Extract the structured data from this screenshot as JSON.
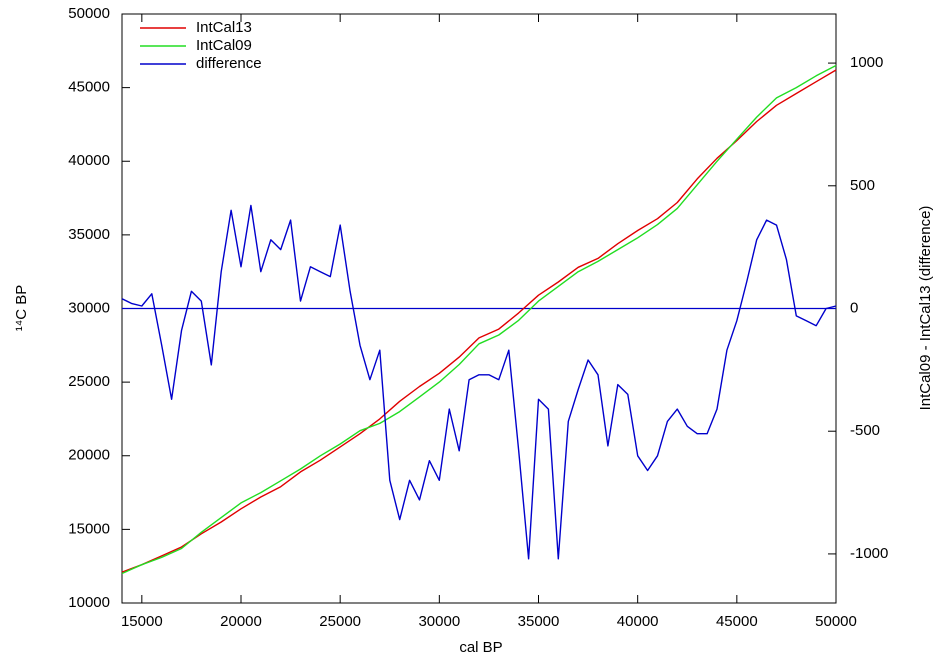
{
  "chart_data": {
    "type": "line",
    "xlabel": "cal BP",
    "ylabel": "¹⁴C BP",
    "y2label": "IntCal09 - IntCal13 (difference)",
    "xlim": [
      14000,
      50000
    ],
    "xticks": [
      15000,
      20000,
      25000,
      30000,
      35000,
      40000,
      45000,
      50000
    ],
    "ylim": [
      10000,
      50000
    ],
    "yticks": [
      10000,
      15000,
      20000,
      25000,
      30000,
      35000,
      40000,
      45000,
      50000
    ],
    "y2lim": [
      -1200,
      1200
    ],
    "y2ticks": [
      -1000,
      -500,
      0,
      500,
      1000
    ],
    "legend": "upper-left",
    "reference_line": {
      "axis": "y2",
      "value": 0,
      "color": "#0000cc"
    },
    "series": [
      {
        "name": "IntCal13",
        "color": "#e00000",
        "x": [
          14000,
          15000,
          16000,
          17000,
          18000,
          19000,
          20000,
          21000,
          22000,
          23000,
          24000,
          25000,
          26000,
          27000,
          28000,
          29000,
          30000,
          31000,
          32000,
          33000,
          34000,
          35000,
          36000,
          37000,
          38000,
          39000,
          40000,
          41000,
          42000,
          43000,
          44000,
          45000,
          46000,
          47000,
          48000,
          49000,
          50000
        ],
        "values": [
          12100,
          12600,
          13200,
          13800,
          14700,
          15500,
          16400,
          17200,
          17900,
          18900,
          19700,
          20600,
          21500,
          22500,
          23700,
          24700,
          25600,
          26700,
          28000,
          28600,
          29700,
          30900,
          31800,
          32800,
          33400,
          34400,
          35300,
          36100,
          37200,
          38800,
          40200,
          41400,
          42700,
          43800,
          44600,
          45400,
          46200
        ]
      },
      {
        "name": "IntCal09",
        "color": "#22dd22",
        "x": [
          14000,
          15000,
          16000,
          17000,
          18000,
          19000,
          20000,
          21000,
          22000,
          23000,
          24000,
          25000,
          26000,
          27000,
          28000,
          29000,
          30000,
          31000,
          32000,
          33000,
          34000,
          35000,
          36000,
          37000,
          38000,
          39000,
          40000,
          41000,
          42000,
          43000,
          44000,
          45000,
          46000,
          47000,
          48000,
          49000,
          50000
        ],
        "values": [
          12000,
          12600,
          13100,
          13700,
          14800,
          15800,
          16800,
          17500,
          18300,
          19100,
          20000,
          20800,
          21700,
          22200,
          23000,
          24000,
          25000,
          26200,
          27600,
          28200,
          29200,
          30500,
          31500,
          32500,
          33200,
          34000,
          34800,
          35700,
          36800,
          38400,
          40000,
          41500,
          43000,
          44300,
          45000,
          45800,
          46500
        ]
      },
      {
        "name": "difference",
        "color": "#0000cc",
        "axis": "y2",
        "x": [
          14000,
          14500,
          15000,
          15500,
          16000,
          16500,
          17000,
          17500,
          18000,
          18500,
          19000,
          19500,
          20000,
          20500,
          21000,
          21500,
          22000,
          22500,
          23000,
          23500,
          24000,
          24500,
          25000,
          25500,
          26000,
          26500,
          27000,
          27500,
          28000,
          28500,
          29000,
          29500,
          30000,
          30500,
          31000,
          31500,
          32000,
          32500,
          33000,
          33500,
          34000,
          34500,
          35000,
          35500,
          36000,
          36500,
          37000,
          37500,
          38000,
          38500,
          39000,
          39500,
          40000,
          40500,
          41000,
          41500,
          42000,
          42500,
          43000,
          43500,
          44000,
          44500,
          45000,
          45500,
          46000,
          46500,
          47000,
          47500,
          48000,
          48500,
          49000,
          49500,
          50000
        ],
        "values": [
          40,
          20,
          10,
          60,
          -150,
          -370,
          -90,
          70,
          30,
          -230,
          150,
          400,
          170,
          420,
          150,
          280,
          240,
          360,
          30,
          170,
          150,
          130,
          340,
          70,
          -150,
          -290,
          -170,
          -700,
          -860,
          -700,
          -780,
          -620,
          -700,
          -410,
          -580,
          -290,
          -270,
          -270,
          -290,
          -170,
          -580,
          -1020,
          -370,
          -410,
          -1020,
          -460,
          -330,
          -210,
          -270,
          -560,
          -310,
          -350,
          -600,
          -660,
          -600,
          -460,
          -410,
          -480,
          -510,
          -510,
          -410,
          -170,
          -50,
          110,
          280,
          360,
          340,
          200,
          -30,
          -50,
          -70,
          0,
          10
        ]
      }
    ]
  }
}
